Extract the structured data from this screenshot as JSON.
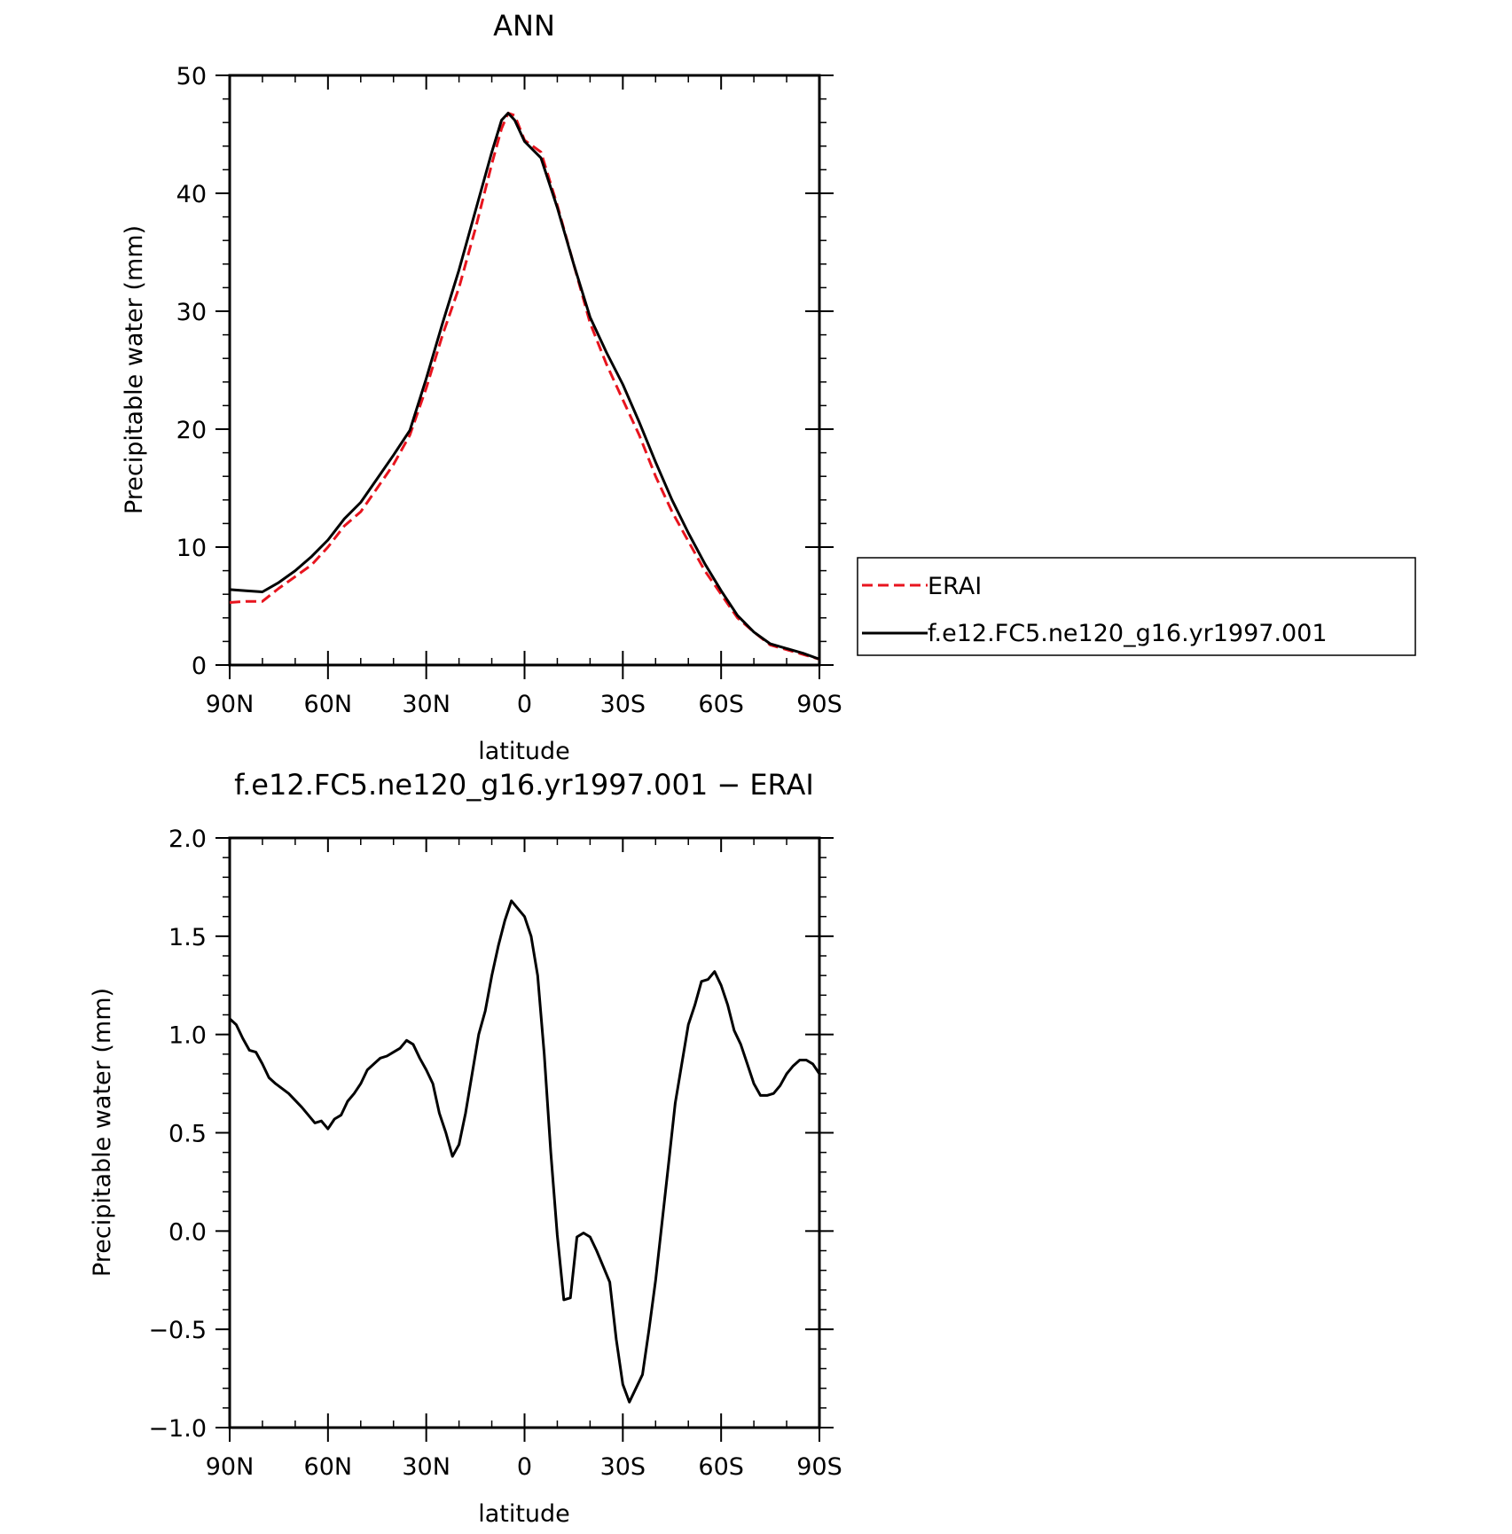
{
  "chart_data": [
    {
      "type": "line",
      "title": "ANN",
      "xlabel": "latitude",
      "ylabel": "Precipitable water (mm)",
      "xlim": [
        90,
        -90
      ],
      "ylim": [
        0,
        50
      ],
      "xticks": [
        {
          "value": 90,
          "label": "90N"
        },
        {
          "value": 60,
          "label": "60N"
        },
        {
          "value": 30,
          "label": "30N"
        },
        {
          "value": 0,
          "label": "0"
        },
        {
          "value": -30,
          "label": "30S"
        },
        {
          "value": -60,
          "label": "60S"
        },
        {
          "value": -90,
          "label": "90S"
        }
      ],
      "yticks": [
        {
          "value": 0,
          "label": "0"
        },
        {
          "value": 10,
          "label": "10"
        },
        {
          "value": 20,
          "label": "20"
        },
        {
          "value": 30,
          "label": "30"
        },
        {
          "value": 40,
          "label": "40"
        },
        {
          "value": 50,
          "label": "50"
        }
      ],
      "legend_position": "right",
      "series": [
        {
          "name": "ERAI",
          "color": "#e8141e",
          "style": "dashed",
          "points": [
            [
              90,
              5.3
            ],
            [
              85,
              5.4
            ],
            [
              80,
              5.4
            ],
            [
              75,
              6.5
            ],
            [
              70,
              7.5
            ],
            [
              65,
              8.5
            ],
            [
              60,
              10.0
            ],
            [
              55,
              11.8
            ],
            [
              50,
              13.0
            ],
            [
              45,
              15.0
            ],
            [
              40,
              17.0
            ],
            [
              35,
              19.5
            ],
            [
              30,
              23.5
            ],
            [
              25,
              28.0
            ],
            [
              20,
              32.0
            ],
            [
              15,
              37.0
            ],
            [
              10,
              42.5
            ],
            [
              7,
              45.5
            ],
            [
              5,
              46.8
            ],
            [
              3,
              46.6
            ],
            [
              0,
              44.5
            ],
            [
              -5,
              43.5
            ],
            [
              -10,
              39.0
            ],
            [
              -15,
              34.0
            ],
            [
              -20,
              29.0
            ],
            [
              -25,
              25.5
            ],
            [
              -30,
              22.5
            ],
            [
              -35,
              19.5
            ],
            [
              -40,
              16.0
            ],
            [
              -45,
              13.0
            ],
            [
              -50,
              10.5
            ],
            [
              -55,
              8.0
            ],
            [
              -60,
              6.0
            ],
            [
              -65,
              4.0
            ],
            [
              -70,
              2.8
            ],
            [
              -75,
              1.7
            ],
            [
              -80,
              1.3
            ],
            [
              -85,
              0.9
            ],
            [
              -90,
              0.5
            ]
          ]
        },
        {
          "name": "f.e12.FC5.ne120_g16.yr1997.001",
          "color": "#000000",
          "style": "solid",
          "points": [
            [
              90,
              6.4
            ],
            [
              85,
              6.3
            ],
            [
              80,
              6.2
            ],
            [
              75,
              7.0
            ],
            [
              70,
              8.0
            ],
            [
              65,
              9.2
            ],
            [
              60,
              10.6
            ],
            [
              55,
              12.4
            ],
            [
              50,
              13.8
            ],
            [
              45,
              15.8
            ],
            [
              40,
              17.8
            ],
            [
              35,
              19.9
            ],
            [
              30,
              24.3
            ],
            [
              25,
              29.0
            ],
            [
              20,
              33.5
            ],
            [
              15,
              38.5
            ],
            [
              10,
              43.5
            ],
            [
              7,
              46.2
            ],
            [
              5,
              46.8
            ],
            [
              3,
              46.2
            ],
            [
              0,
              44.4
            ],
            [
              -5,
              43.0
            ],
            [
              -10,
              38.8
            ],
            [
              -15,
              34.0
            ],
            [
              -20,
              29.5
            ],
            [
              -25,
              26.5
            ],
            [
              -30,
              23.8
            ],
            [
              -35,
              20.6
            ],
            [
              -40,
              17.2
            ],
            [
              -45,
              14.0
            ],
            [
              -50,
              11.2
            ],
            [
              -55,
              8.6
            ],
            [
              -60,
              6.3
            ],
            [
              -65,
              4.2
            ],
            [
              -70,
              2.8
            ],
            [
              -75,
              1.8
            ],
            [
              -80,
              1.4
            ],
            [
              -85,
              1.0
            ],
            [
              -90,
              0.5
            ]
          ]
        }
      ]
    },
    {
      "type": "line",
      "title": "f.e12.FC5.ne120_g16.yr1997.001 − ERAI",
      "xlabel": "latitude",
      "ylabel": "Precipitable water (mm)",
      "xlim": [
        90,
        -90
      ],
      "ylim": [
        -1.0,
        2.0
      ],
      "xticks": [
        {
          "value": 90,
          "label": "90N"
        },
        {
          "value": 60,
          "label": "60N"
        },
        {
          "value": 30,
          "label": "30N"
        },
        {
          "value": 0,
          "label": "0"
        },
        {
          "value": -30,
          "label": "30S"
        },
        {
          "value": -60,
          "label": "60S"
        },
        {
          "value": -90,
          "label": "90S"
        }
      ],
      "yticks": [
        {
          "value": -1.0,
          "label": "−1.0"
        },
        {
          "value": -0.5,
          "label": "−0.5"
        },
        {
          "value": 0.0,
          "label": "0.0"
        },
        {
          "value": 0.5,
          "label": "0.5"
        },
        {
          "value": 1.0,
          "label": "1.0"
        },
        {
          "value": 1.5,
          "label": "1.5"
        },
        {
          "value": 2.0,
          "label": "2.0"
        }
      ],
      "series": [
        {
          "color": "#000000",
          "style": "solid",
          "points": [
            [
              90,
              1.08
            ],
            [
              88,
              1.05
            ],
            [
              86,
              0.98
            ],
            [
              84,
              0.92
            ],
            [
              82,
              0.91
            ],
            [
              80,
              0.85
            ],
            [
              78,
              0.78
            ],
            [
              76,
              0.75
            ],
            [
              72,
              0.7
            ],
            [
              68,
              0.63
            ],
            [
              64,
              0.55
            ],
            [
              62,
              0.56
            ],
            [
              60,
              0.52
            ],
            [
              58,
              0.57
            ],
            [
              56,
              0.59
            ],
            [
              54,
              0.66
            ],
            [
              52,
              0.7
            ],
            [
              50,
              0.75
            ],
            [
              48,
              0.82
            ],
            [
              46,
              0.85
            ],
            [
              44,
              0.88
            ],
            [
              42,
              0.89
            ],
            [
              40,
              0.91
            ],
            [
              38,
              0.93
            ],
            [
              36,
              0.97
            ],
            [
              34,
              0.95
            ],
            [
              32,
              0.88
            ],
            [
              30,
              0.82
            ],
            [
              28,
              0.75
            ],
            [
              26,
              0.6
            ],
            [
              24,
              0.5
            ],
            [
              22,
              0.38
            ],
            [
              20,
              0.44
            ],
            [
              18,
              0.6
            ],
            [
              16,
              0.8
            ],
            [
              14,
              1.0
            ],
            [
              12,
              1.12
            ],
            [
              10,
              1.3
            ],
            [
              8,
              1.45
            ],
            [
              6,
              1.58
            ],
            [
              4,
              1.68
            ],
            [
              2,
              1.64
            ],
            [
              0,
              1.6
            ],
            [
              -2,
              1.5
            ],
            [
              -4,
              1.3
            ],
            [
              -6,
              0.9
            ],
            [
              -8,
              0.4
            ],
            [
              -10,
              -0.02
            ],
            [
              -12,
              -0.35
            ],
            [
              -14,
              -0.34
            ],
            [
              -16,
              -0.03
            ],
            [
              -18,
              -0.01
            ],
            [
              -20,
              -0.03
            ],
            [
              -22,
              -0.1
            ],
            [
              -24,
              -0.18
            ],
            [
              -26,
              -0.26
            ],
            [
              -28,
              -0.55
            ],
            [
              -30,
              -0.78
            ],
            [
              -32,
              -0.87
            ],
            [
              -34,
              -0.8
            ],
            [
              -36,
              -0.73
            ],
            [
              -38,
              -0.5
            ],
            [
              -40,
              -0.25
            ],
            [
              -42,
              0.05
            ],
            [
              -44,
              0.35
            ],
            [
              -46,
              0.65
            ],
            [
              -48,
              0.85
            ],
            [
              -50,
              1.05
            ],
            [
              -52,
              1.15
            ],
            [
              -54,
              1.27
            ],
            [
              -56,
              1.28
            ],
            [
              -58,
              1.32
            ],
            [
              -60,
              1.25
            ],
            [
              -62,
              1.15
            ],
            [
              -64,
              1.02
            ],
            [
              -66,
              0.95
            ],
            [
              -68,
              0.85
            ],
            [
              -70,
              0.75
            ],
            [
              -72,
              0.69
            ],
            [
              -74,
              0.69
            ],
            [
              -76,
              0.7
            ],
            [
              -78,
              0.74
            ],
            [
              -80,
              0.8
            ],
            [
              -82,
              0.84
            ],
            [
              -84,
              0.87
            ],
            [
              -86,
              0.87
            ],
            [
              -88,
              0.85
            ],
            [
              -90,
              0.8
            ]
          ]
        }
      ]
    }
  ],
  "legend": {
    "items": [
      {
        "label": "ERAI",
        "color": "#e8141e",
        "style": "dashed"
      },
      {
        "label": "f.e12.FC5.ne120_g16.yr1997.001",
        "color": "#000000",
        "style": "solid"
      }
    ]
  }
}
